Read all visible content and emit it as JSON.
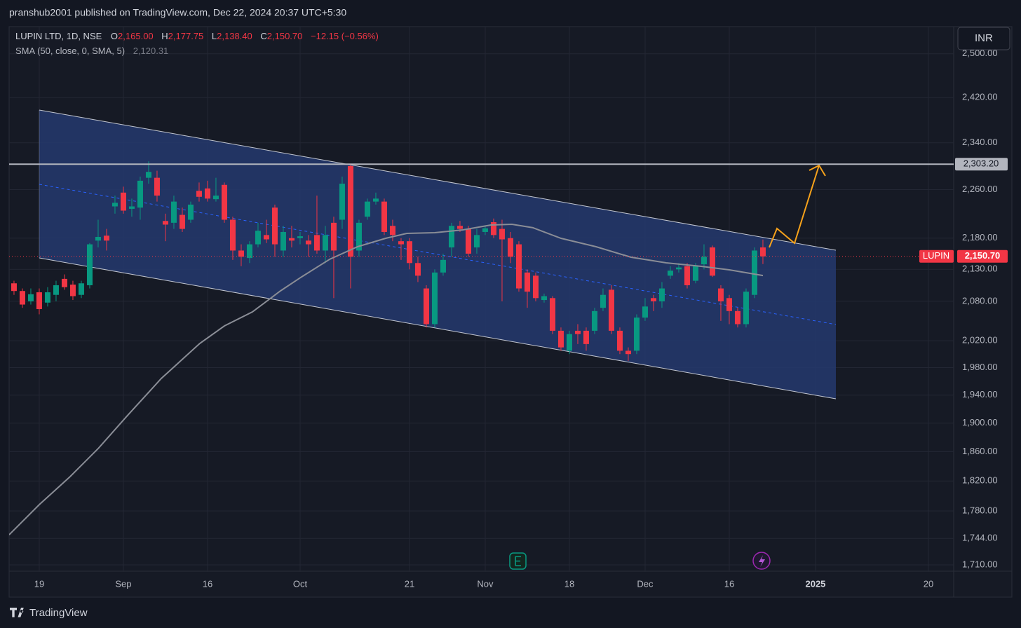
{
  "chart_data": {
    "type": "candlestick",
    "header": "pranshub2001 published on TradingView.com, Dec 22, 2024 20:37 UTC+5:30",
    "title": "LUPIN LTD, 1D, NSE",
    "ohlc_keys": [
      "O",
      "H",
      "L",
      "C"
    ],
    "ohlc_labels": [
      "2,165.00",
      "2,177.75",
      "2,138.40",
      "2,150.70"
    ],
    "change": "−12.15 (−0.56%)",
    "up_color": "#089981",
    "down_color": "#f23645",
    "x": [
      -3,
      -2,
      -1,
      0,
      1,
      2,
      3,
      4,
      5,
      6,
      7,
      8,
      9,
      10,
      11,
      12,
      13,
      14,
      15,
      16,
      17,
      18,
      19,
      20,
      21,
      22,
      23,
      24,
      25,
      26,
      27,
      28,
      29,
      30,
      31,
      32,
      33,
      34,
      35,
      36,
      37,
      38,
      39,
      40,
      41,
      42,
      43,
      44,
      45,
      46,
      47,
      48,
      49,
      50,
      51,
      52,
      53,
      54,
      55,
      56,
      57,
      58,
      59,
      60,
      61,
      62,
      63,
      64,
      65,
      66,
      67,
      68,
      69,
      70,
      71,
      72,
      73,
      74,
      75,
      76,
      77,
      78,
      79,
      80,
      81,
      82,
      83,
      84,
      85,
      86
    ],
    "open": [
      2108,
      2096,
      2080,
      2094,
      2078,
      2090,
      2115,
      2106,
      2090,
      2105,
      2176,
      2184,
      2232,
      2255,
      2228,
      2230,
      2280,
      2280,
      2208,
      2205,
      2218,
      2210,
      2258,
      2262,
      2244,
      2268,
      2210,
      2160,
      2148,
      2170,
      2185,
      2230,
      2160,
      2180,
      2180,
      2176,
      2185,
      2160,
      2205,
      2210,
      2300,
      2160,
      2215,
      2240,
      2240,
      2200,
      2175,
      2175,
      2140,
      2100,
      2045,
      2125,
      2165,
      2200,
      2195,
      2165,
      2190,
      2206,
      2195,
      2180,
      2170,
      2125,
      2120,
      2082,
      2085,
      2035,
      2005,
      2035,
      2035,
      2035,
      2070,
      2098,
      2035,
      2005,
      2005,
      2055,
      2085,
      2080,
      2120,
      2130,
      2135,
      2112,
      2138,
      2165,
      2100,
      2085,
      2065,
      2045,
      2090,
      2165
    ],
    "high": [
      2112,
      2100,
      2100,
      2100,
      2102,
      2112,
      2122,
      2112,
      2112,
      2172,
      2210,
      2195,
      2250,
      2265,
      2245,
      2282,
      2308,
      2292,
      2220,
      2250,
      2230,
      2240,
      2272,
      2275,
      2280,
      2272,
      2215,
      2170,
      2175,
      2205,
      2210,
      2235,
      2200,
      2200,
      2190,
      2185,
      2250,
      2200,
      2215,
      2282,
      2303,
      2210,
      2245,
      2255,
      2245,
      2210,
      2180,
      2180,
      2150,
      2105,
      2130,
      2155,
      2205,
      2208,
      2200,
      2195,
      2200,
      2212,
      2210,
      2190,
      2175,
      2130,
      2125,
      2092,
      2088,
      2040,
      2035,
      2045,
      2040,
      2070,
      2100,
      2105,
      2040,
      2010,
      2060,
      2085,
      2090,
      2110,
      2135,
      2140,
      2140,
      2140,
      2170,
      2168,
      2105,
      2090,
      2070,
      2100,
      2165,
      2177.75
    ],
    "low": [
      2090,
      2070,
      2075,
      2060,
      2072,
      2080,
      2098,
      2082,
      2085,
      2100,
      2165,
      2160,
      2220,
      2220,
      2215,
      2210,
      2270,
      2240,
      2175,
      2195,
      2190,
      2205,
      2240,
      2240,
      2240,
      2205,
      2145,
      2135,
      2140,
      2165,
      2172,
      2150,
      2150,
      2165,
      2170,
      2150,
      2155,
      2140,
      2085,
      2195,
      2100,
      2150,
      2210,
      2235,
      2185,
      2175,
      2145,
      2130,
      2110,
      2040,
      2040,
      2120,
      2150,
      2190,
      2150,
      2155,
      2185,
      2180,
      2080,
      2140,
      2095,
      2070,
      2080,
      2078,
      2030,
      2005,
      2000,
      2015,
      2005,
      2030,
      2065,
      2030,
      2000,
      1990,
      2000,
      2050,
      2065,
      2070,
      2115,
      2125,
      2100,
      2108,
      2130,
      2118,
      2050,
      2045,
      2040,
      2040,
      2085,
      2138.4
    ],
    "close": [
      2096,
      2075,
      2091,
      2068,
      2094,
      2105,
      2102,
      2088,
      2108,
      2170,
      2182,
      2176,
      2238,
      2225,
      2232,
      2275,
      2290,
      2250,
      2202,
      2240,
      2195,
      2235,
      2248,
      2245,
      2250,
      2210,
      2160,
      2150,
      2170,
      2192,
      2178,
      2170,
      2190,
      2176,
      2183,
      2170,
      2160,
      2185,
      2160,
      2270,
      2150,
      2205,
      2240,
      2245,
      2190,
      2185,
      2170,
      2140,
      2120,
      2045,
      2125,
      2145,
      2200,
      2195,
      2155,
      2185,
      2196,
      2185,
      2178,
      2150,
      2100,
      2095,
      2085,
      2088,
      2035,
      2010,
      2030,
      2030,
      2015,
      2065,
      2090,
      2035,
      2005,
      2000,
      2055,
      2072,
      2080,
      2100,
      2128,
      2133,
      2105,
      2135,
      2150,
      2120,
      2080,
      2065,
      2045,
      2095,
      2160,
      2150.7
    ],
    "indicator": {
      "name": "SMA (50, close, 0, SMA, 5)",
      "value_label": "2,120.31",
      "color": "#8a8d96",
      "x": [
        -3.58,
        0,
        3.67,
        7,
        10.33,
        14.5,
        19.08,
        22,
        25.33,
        28.67,
        31.17,
        34.5,
        37.83,
        41.17,
        43.67,
        47,
        50.33,
        53.67,
        56.17,
        58.67,
        62,
        66.17,
        70.33,
        74.5,
        78.67,
        82,
        86
      ],
      "values": [
        1748.7,
        1788.3,
        1826.0,
        1864.4,
        1908.7,
        1964.1,
        2015.9,
        2042.3,
        2063.7,
        2096.2,
        2118.1,
        2145.9,
        2166.1,
        2179.7,
        2187.7,
        2188.8,
        2193.4,
        2201.4,
        2202.6,
        2196.9,
        2179.7,
        2166.1,
        2149.3,
        2140.3,
        2134.8,
        2129.2,
        2120.31
      ]
    },
    "xlim": [
      -3.58,
      108.67
    ],
    "xticks": [
      {
        "value": 0,
        "label": "19"
      },
      {
        "value": 10,
        "label": "Sep"
      },
      {
        "value": 20,
        "label": "16"
      },
      {
        "value": 31,
        "label": "Oct"
      },
      {
        "value": 44,
        "label": "21"
      },
      {
        "value": 53,
        "label": "Nov"
      },
      {
        "value": 63,
        "label": "18"
      },
      {
        "value": 72,
        "label": "Dec"
      },
      {
        "value": 82,
        "label": "16"
      },
      {
        "value": 92.25,
        "label": "2025"
      },
      {
        "value": 105.67,
        "label": "20"
      }
    ],
    "ylim": [
      1702,
      2551
    ],
    "log_scale": true,
    "grid": true,
    "yticks": [
      {
        "value": 1710,
        "label": "1,710.00"
      },
      {
        "value": 1744,
        "label": "1,744.00"
      },
      {
        "value": 1780,
        "label": "1,780.00"
      },
      {
        "value": 1820,
        "label": "1,820.00"
      },
      {
        "value": 1860,
        "label": "1,860.00"
      },
      {
        "value": 1900,
        "label": "1,900.00"
      },
      {
        "value": 1940,
        "label": "1,940.00"
      },
      {
        "value": 1980,
        "label": "1,980.00"
      },
      {
        "value": 2020,
        "label": "2,020.00"
      },
      {
        "value": 2080,
        "label": "2,080.00"
      },
      {
        "value": 2130,
        "label": "2,130.00"
      },
      {
        "value": 2180,
        "label": "2,180.00"
      },
      {
        "value": 2260,
        "label": "2,260.00"
      },
      {
        "value": 2340,
        "label": "2,340.00"
      },
      {
        "value": 2420,
        "label": "2,420.00"
      },
      {
        "value": 2500,
        "label": "2,500.00"
      }
    ],
    "hline": {
      "value": 2303.2,
      "label": "2,303.20",
      "color": "#b2b5be"
    },
    "last_price": {
      "value": 2150.7,
      "label": "2,150.70",
      "symbol": "LUPIN"
    },
    "currency": "INR",
    "brand": "TradingView"
  }
}
